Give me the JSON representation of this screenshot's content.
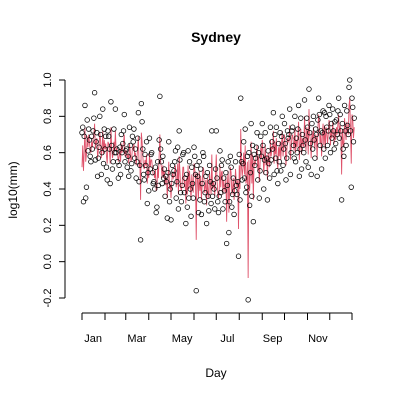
{
  "chart_data": {
    "type": "line",
    "title": "Sydney",
    "xlabel": "Day",
    "ylabel": "log10(mm)",
    "xlim": [
      1,
      365
    ],
    "ylim": [
      -0.2,
      1.0
    ],
    "y_ticks": [
      -0.2,
      0.0,
      0.2,
      0.4,
      0.6,
      0.8,
      1.0
    ],
    "y_tick_labels": [
      "-0.2",
      "0.0",
      "0.2",
      "0.4",
      "0.6",
      "0.8",
      "1.0"
    ],
    "x_ticks": [
      1,
      32,
      60,
      91,
      121,
      152,
      182,
      213,
      244,
      274,
      305,
      335,
      365
    ],
    "x_tick_labels": [
      {
        "x": 16,
        "label": "Jan"
      },
      {
        "x": 75,
        "label": "Mar"
      },
      {
        "x": 136,
        "label": "May"
      },
      {
        "x": 197,
        "label": "Jul"
      },
      {
        "x": 258,
        "label": "Sep"
      },
      {
        "x": 319,
        "label": "Nov"
      }
    ],
    "grid": false,
    "legend": "none",
    "series": [
      {
        "style": "points",
        "marker": "open-circle",
        "color": "#000000",
        "values": [
          0.71,
          0.74,
          0.33,
          0.69,
          0.86,
          0.35,
          0.41,
          0.78,
          0.61,
          0.73,
          0.67,
          0.58,
          0.55,
          0.69,
          0.62,
          0.72,
          0.79,
          0.93,
          0.56,
          0.66,
          0.71,
          0.47,
          0.57,
          0.63,
          0.8,
          0.7,
          0.48,
          0.6,
          0.84,
          0.54,
          0.73,
          0.62,
          0.69,
          0.52,
          0.45,
          0.72,
          0.69,
          0.62,
          0.43,
          0.88,
          0.64,
          0.51,
          0.55,
          0.73,
          0.6,
          0.84,
          0.6,
          0.62,
          0.55,
          0.46,
          0.53,
          0.63,
          0.48,
          0.7,
          0.6,
          0.65,
          0.72,
          0.81,
          0.55,
          0.61,
          0.62,
          0.52,
          0.58,
          0.47,
          0.74,
          0.64,
          0.5,
          0.54,
          0.69,
          0.66,
          0.73,
          0.57,
          0.62,
          0.46,
          0.55,
          0.68,
          0.82,
          0.44,
          0.53,
          0.12,
          0.87,
          0.77,
          0.62,
          0.48,
          0.45,
          0.59,
          0.53,
          0.66,
          0.32,
          0.49,
          0.39,
          0.68,
          0.51,
          0.59,
          0.6,
          0.49,
          0.43,
          0.44,
          0.4,
          0.52,
          0.27,
          0.3,
          0.55,
          0.42,
          0.67,
          0.91,
          0.62,
          0.55,
          0.43,
          0.58,
          0.46,
          0.51,
          0.36,
          0.47,
          0.44,
          0.24,
          0.49,
          0.66,
          0.33,
          0.4,
          0.23,
          0.43,
          0.53,
          0.48,
          0.5,
          0.55,
          0.61,
          0.35,
          0.44,
          0.63,
          0.29,
          0.72,
          0.56,
          0.38,
          0.33,
          0.42,
          0.59,
          0.6,
          0.38,
          0.46,
          0.21,
          0.48,
          0.3,
          0.61,
          0.35,
          0.55,
          0.4,
          0.25,
          0.52,
          0.43,
          0.35,
          0.63,
          0.58,
          0.48,
          -0.16,
          0.53,
          0.47,
          0.27,
          0.55,
          0.34,
          0.51,
          0.26,
          0.43,
          0.6,
          0.58,
          0.33,
          0.38,
          0.47,
          0.21,
          0.49,
          0.36,
          0.28,
          0.53,
          0.44,
          0.32,
          0.72,
          0.36,
          0.43,
          0.4,
          0.29,
          0.51,
          0.72,
          0.46,
          0.33,
          0.27,
          0.36,
          0.61,
          0.38,
          0.53,
          0.56,
          0.29,
          0.46,
          0.39,
          0.33,
          0.49,
          0.1,
          0.42,
          0.55,
          0.16,
          0.33,
          0.58,
          0.52,
          0.3,
          0.37,
          0.46,
          0.26,
          0.39,
          0.55,
          0.42,
          0.37,
          0.44,
          0.03,
          0.59,
          0.34,
          0.9,
          0.55,
          0.45,
          0.54,
          0.66,
          0.46,
          0.73,
          0.38,
          0.41,
          0.58,
          -0.21,
          0.6,
          0.31,
          0.49,
          0.76,
          0.36,
          0.64,
          0.22,
          0.59,
          0.53,
          0.57,
          0.63,
          0.71,
          0.45,
          0.6,
          0.35,
          0.5,
          0.69,
          0.58,
          0.76,
          0.64,
          0.4,
          0.56,
          0.71,
          0.49,
          0.57,
          0.34,
          0.61,
          0.54,
          0.46,
          0.74,
          0.56,
          0.66,
          0.62,
          0.82,
          0.48,
          0.7,
          0.57,
          0.74,
          0.5,
          0.43,
          0.65,
          0.55,
          0.71,
          0.5,
          0.69,
          0.8,
          0.53,
          0.62,
          0.76,
          0.65,
          0.45,
          0.57,
          0.72,
          0.68,
          0.7,
          0.84,
          0.48,
          0.6,
          0.72,
          0.74,
          0.64,
          0.57,
          0.8,
          0.55,
          0.68,
          0.6,
          0.73,
          0.86,
          0.47,
          0.62,
          0.79,
          0.51,
          0.7,
          0.64,
          0.6,
          0.89,
          0.67,
          0.55,
          0.79,
          0.74,
          0.52,
          0.95,
          0.71,
          0.65,
          0.48,
          0.76,
          0.62,
          0.8,
          0.67,
          0.57,
          0.73,
          0.7,
          0.47,
          0.78,
          0.9,
          0.81,
          0.64,
          0.72,
          0.51,
          0.71,
          0.83,
          0.62,
          0.82,
          0.57,
          0.8,
          0.74,
          0.64,
          0.72,
          0.86,
          0.81,
          0.6,
          0.76,
          0.68,
          0.84,
          0.72,
          0.62,
          0.77,
          0.65,
          0.78,
          0.7,
          0.83,
          0.9,
          0.68,
          0.81,
          0.72,
          0.34,
          0.76,
          0.62,
          0.58,
          0.86,
          0.72,
          0.64,
          0.83,
          0.75,
          0.7,
          0.96,
          1.0,
          0.72,
          0.41,
          0.9,
          0.85,
          0.66,
          0.79
        ]
      },
      {
        "style": "line",
        "color": "#df536b",
        "values": [
          0.52,
          0.64,
          0.5,
          0.61,
          0.74,
          0.55,
          0.59,
          0.69,
          0.63,
          0.7,
          0.66,
          0.61,
          0.6,
          0.66,
          0.63,
          0.68,
          0.7,
          0.76,
          0.62,
          0.66,
          0.68,
          0.57,
          0.61,
          0.64,
          0.71,
          0.67,
          0.57,
          0.62,
          0.72,
          0.59,
          0.67,
          0.62,
          0.65,
          0.58,
          0.54,
          0.66,
          0.65,
          0.62,
          0.54,
          0.74,
          0.63,
          0.57,
          0.59,
          0.66,
          0.61,
          0.72,
          0.61,
          0.62,
          0.59,
          0.55,
          0.58,
          0.62,
          0.55,
          0.65,
          0.6,
          0.63,
          0.66,
          0.7,
          0.58,
          0.61,
          0.61,
          0.57,
          0.59,
          0.54,
          0.65,
          0.61,
          0.55,
          0.57,
          0.63,
          0.62,
          0.65,
          0.58,
          0.6,
          0.53,
          0.57,
          0.62,
          0.69,
          0.52,
          0.56,
          0.34,
          0.71,
          0.66,
          0.58,
          0.52,
          0.51,
          0.56,
          0.53,
          0.59,
          0.43,
          0.51,
          0.46,
          0.6,
          0.52,
          0.56,
          0.56,
          0.51,
          0.48,
          0.48,
          0.46,
          0.51,
          0.39,
          0.4,
          0.52,
          0.46,
          0.58,
          0.7,
          0.55,
          0.52,
          0.46,
          0.53,
          0.47,
          0.5,
          0.42,
          0.47,
          0.45,
          0.35,
          0.47,
          0.55,
          0.4,
          0.43,
          0.35,
          0.44,
          0.49,
          0.46,
          0.47,
          0.5,
          0.53,
          0.41,
          0.44,
          0.54,
          0.37,
          0.58,
          0.5,
          0.41,
          0.39,
          0.43,
          0.52,
          0.52,
          0.41,
          0.45,
          0.32,
          0.46,
          0.37,
          0.53,
          0.4,
          0.5,
          0.42,
          0.34,
          0.48,
          0.43,
          0.38,
          0.54,
          0.51,
          0.45,
          0.12,
          0.49,
          0.45,
          0.35,
          0.5,
          0.39,
          0.47,
          0.34,
          0.42,
          0.52,
          0.51,
          0.38,
          0.41,
          0.45,
          0.31,
          0.46,
          0.39,
          0.35,
          0.49,
          0.43,
          0.37,
          0.59,
          0.4,
          0.44,
          0.42,
          0.36,
          0.48,
          0.59,
          0.45,
          0.38,
          0.35,
          0.4,
          0.53,
          0.41,
          0.49,
          0.5,
          0.37,
          0.45,
          0.41,
          0.38,
          0.47,
          0.22,
          0.43,
          0.5,
          0.27,
          0.39,
          0.52,
          0.49,
          0.37,
          0.41,
          0.46,
          0.34,
          0.42,
          0.51,
          0.44,
          0.41,
          0.45,
          0.18,
          0.53,
          0.4,
          0.73,
          0.52,
          0.47,
          0.52,
          0.6,
          0.48,
          0.64,
          0.43,
          0.45,
          0.55,
          -0.09,
          0.56,
          0.39,
          0.5,
          0.66,
          0.43,
          0.59,
          0.34,
          0.56,
          0.53,
          0.55,
          0.59,
          0.64,
          0.5,
          0.58,
          0.44,
          0.53,
          0.63,
          0.57,
          0.67,
          0.61,
          0.48,
          0.56,
          0.64,
          0.53,
          0.58,
          0.45,
          0.6,
          0.56,
          0.52,
          0.67,
          0.58,
          0.63,
          0.62,
          0.72,
          0.54,
          0.66,
          0.59,
          0.68,
          0.55,
          0.51,
          0.63,
          0.58,
          0.66,
          0.56,
          0.65,
          0.72,
          0.58,
          0.63,
          0.7,
          0.64,
          0.53,
          0.6,
          0.68,
          0.66,
          0.67,
          0.75,
          0.56,
          0.63,
          0.69,
          0.7,
          0.65,
          0.61,
          0.73,
          0.6,
          0.67,
          0.63,
          0.69,
          0.77,
          0.56,
          0.65,
          0.73,
          0.59,
          0.68,
          0.65,
          0.63,
          0.8,
          0.67,
          0.61,
          0.74,
          0.71,
          0.59,
          0.84,
          0.7,
          0.66,
          0.57,
          0.72,
          0.65,
          0.74,
          0.67,
          0.62,
          0.7,
          0.68,
          0.56,
          0.73,
          0.81,
          0.75,
          0.65,
          0.7,
          0.58,
          0.69,
          0.76,
          0.64,
          0.75,
          0.62,
          0.74,
          0.71,
          0.65,
          0.7,
          0.78,
          0.75,
          0.64,
          0.72,
          0.68,
          0.77,
          0.7,
          0.65,
          0.73,
          0.67,
          0.74,
          0.7,
          0.76,
          0.81,
          0.69,
          0.75,
          0.71,
          0.48,
          0.73,
          0.65,
          0.63,
          0.79,
          0.71,
          0.67,
          0.77,
          0.73,
          0.7,
          0.86,
          0.9,
          0.72,
          0.54,
          0.81,
          0.79,
          0.68,
          0.74
        ]
      }
    ]
  }
}
